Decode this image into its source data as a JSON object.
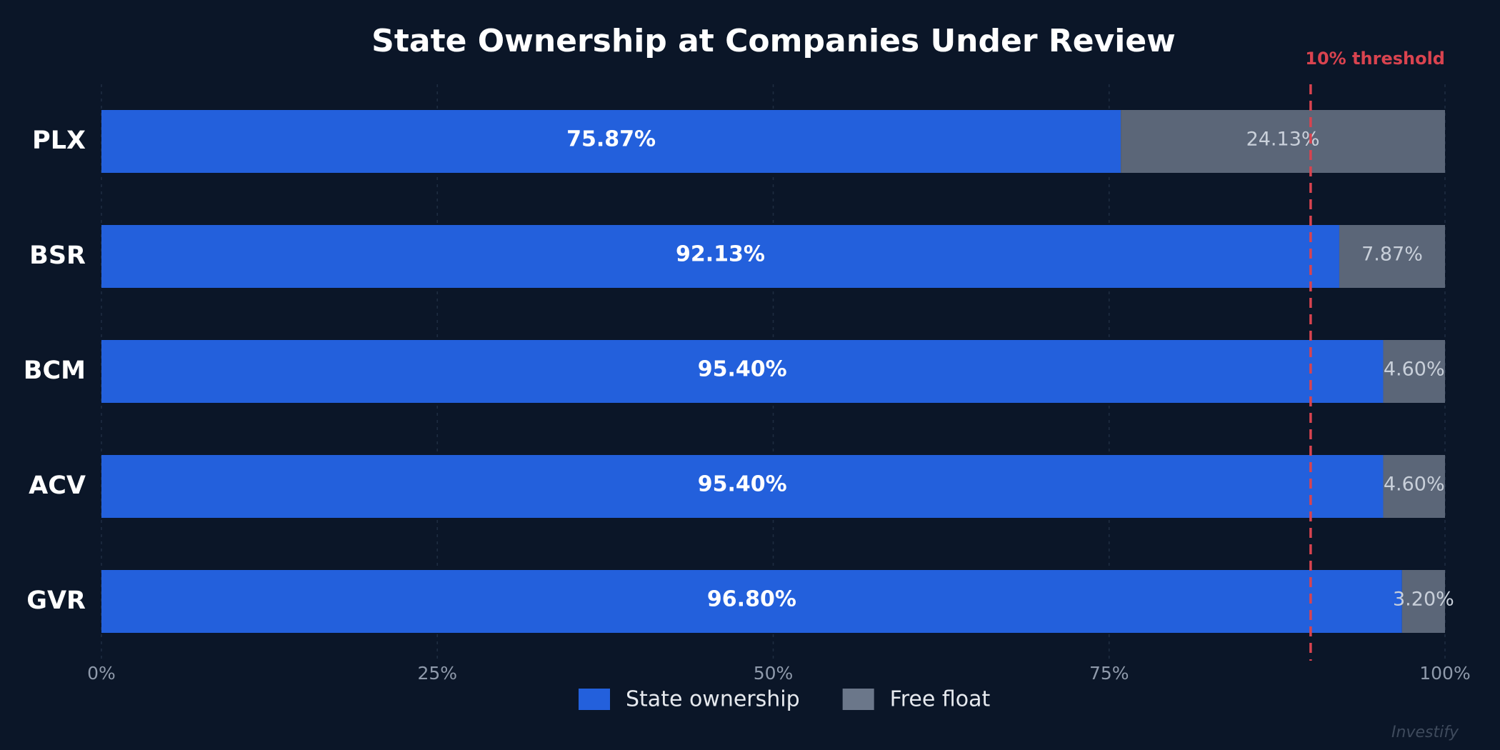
{
  "chart_data": {
    "type": "stacked_bar_horizontal",
    "title": "State Ownership at Companies Under Review",
    "categories": [
      "PLX",
      "BSR",
      "BCM",
      "ACV",
      "GVR"
    ],
    "series": [
      {
        "name": "State ownership",
        "color": "#2360dc",
        "values": [
          75.87,
          92.13,
          95.4,
          95.4,
          96.8
        ],
        "value_labels": [
          "75.87%",
          "92.13%",
          "95.40%",
          "95.40%",
          "96.80%"
        ]
      },
      {
        "name": "Free float",
        "color": "#5b6678",
        "values": [
          24.13,
          7.87,
          4.6,
          4.6,
          3.2
        ],
        "value_labels": [
          "24.13%",
          "7.87%",
          "4.60%",
          "4.60%",
          "3.20%"
        ]
      }
    ],
    "xlim": [
      0,
      100
    ],
    "xticks": [
      {
        "value": 0,
        "label": "0%"
      },
      {
        "value": 25,
        "label": "25%"
      },
      {
        "value": 50,
        "label": "50%"
      },
      {
        "value": 75,
        "label": "75%"
      },
      {
        "value": 100,
        "label": "100%"
      }
    ],
    "grid": true,
    "threshold": {
      "value": 90,
      "label": "10% threshold",
      "color": "#d9434f"
    },
    "legend": "bottom"
  },
  "watermark": "Investify"
}
